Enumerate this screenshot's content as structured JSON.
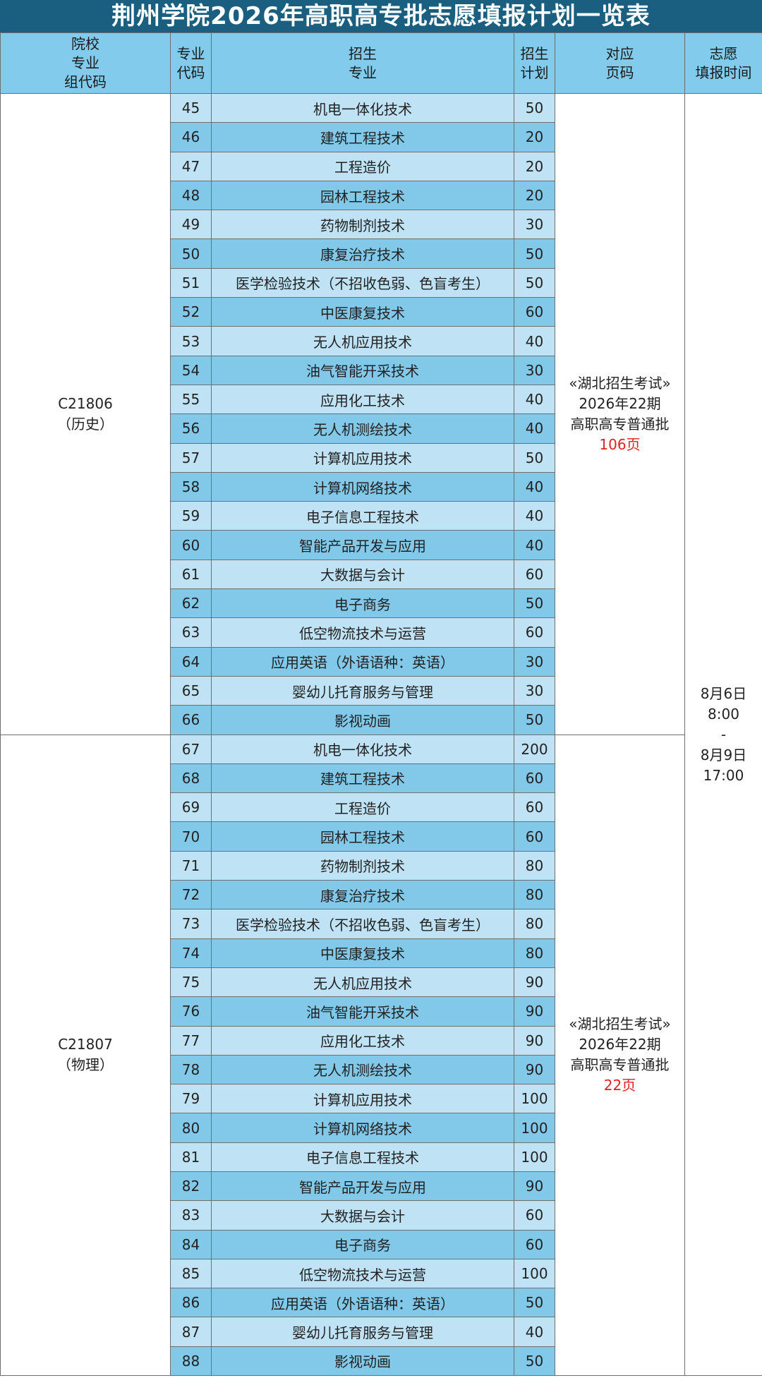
{
  "title": "荆州学院2026年高职高专批志愿填报计划一览表",
  "headers": {
    "group_code": [
      "院校",
      "专业",
      "组代码"
    ],
    "major_code": [
      "专业",
      "代码"
    ],
    "major_name": [
      "招生",
      "专业"
    ],
    "plan": [
      "招生",
      "计划"
    ],
    "page_ref": [
      "对应",
      "页码"
    ],
    "fill_time": [
      "志愿",
      "填报时间"
    ]
  },
  "fill_time": [
    "8月6日",
    "8:00",
    "-",
    "8月9日",
    "17:00"
  ],
  "groups": [
    {
      "code": "C21806",
      "subject": "（历史）",
      "page_ref": [
        "«湖北招生考试»",
        "2026年22期",
        "高职高专普通批"
      ],
      "page_num": "106页",
      "rows": [
        {
          "code": "45",
          "name": "机电一体化技术",
          "plan": "50"
        },
        {
          "code": "46",
          "name": "建筑工程技术",
          "plan": "20"
        },
        {
          "code": "47",
          "name": "工程造价",
          "plan": "20"
        },
        {
          "code": "48",
          "name": "园林工程技术",
          "plan": "20"
        },
        {
          "code": "49",
          "name": "药物制剂技术",
          "plan": "30"
        },
        {
          "code": "50",
          "name": "康复治疗技术",
          "plan": "50"
        },
        {
          "code": "51",
          "name": "医学检验技术（不招收色弱、色盲考生）",
          "plan": "50"
        },
        {
          "code": "52",
          "name": "中医康复技术",
          "plan": "60"
        },
        {
          "code": "53",
          "name": "无人机应用技术",
          "plan": "40"
        },
        {
          "code": "54",
          "name": "油气智能开采技术",
          "plan": "30"
        },
        {
          "code": "55",
          "name": "应用化工技术",
          "plan": "40"
        },
        {
          "code": "56",
          "name": "无人机测绘技术",
          "plan": "40"
        },
        {
          "code": "57",
          "name": "计算机应用技术",
          "plan": "50"
        },
        {
          "code": "58",
          "name": "计算机网络技术",
          "plan": "40"
        },
        {
          "code": "59",
          "name": "电子信息工程技术",
          "plan": "40"
        },
        {
          "code": "60",
          "name": "智能产品开发与应用",
          "plan": "40"
        },
        {
          "code": "61",
          "name": "大数据与会计",
          "plan": "60"
        },
        {
          "code": "62",
          "name": "电子商务",
          "plan": "50"
        },
        {
          "code": "63",
          "name": "低空物流技术与运营",
          "plan": "60"
        },
        {
          "code": "64",
          "name": "应用英语（外语语种：英语）",
          "plan": "30"
        },
        {
          "code": "65",
          "name": "婴幼儿托育服务与管理",
          "plan": "30"
        },
        {
          "code": "66",
          "name": "影视动画",
          "plan": "50"
        }
      ]
    },
    {
      "code": "C21807",
      "subject": "（物理）",
      "page_ref": [
        "«湖北招生考试»",
        "2026年22期",
        "高职高专普通批"
      ],
      "page_num": "22页",
      "rows": [
        {
          "code": "67",
          "name": "机电一体化技术",
          "plan": "200"
        },
        {
          "code": "68",
          "name": "建筑工程技术",
          "plan": "60"
        },
        {
          "code": "69",
          "name": "工程造价",
          "plan": "60"
        },
        {
          "code": "70",
          "name": "园林工程技术",
          "plan": "60"
        },
        {
          "code": "71",
          "name": "药物制剂技术",
          "plan": "80"
        },
        {
          "code": "72",
          "name": "康复治疗技术",
          "plan": "80"
        },
        {
          "code": "73",
          "name": "医学检验技术（不招收色弱、色盲考生）",
          "plan": "80"
        },
        {
          "code": "74",
          "name": "中医康复技术",
          "plan": "80"
        },
        {
          "code": "75",
          "name": "无人机应用技术",
          "plan": "90"
        },
        {
          "code": "76",
          "name": "油气智能开采技术",
          "plan": "90"
        },
        {
          "code": "77",
          "name": "应用化工技术",
          "plan": "90"
        },
        {
          "code": "78",
          "name": "无人机测绘技术",
          "plan": "90"
        },
        {
          "code": "79",
          "name": "计算机应用技术",
          "plan": "100"
        },
        {
          "code": "80",
          "name": "计算机网络技术",
          "plan": "100"
        },
        {
          "code": "81",
          "name": "电子信息工程技术",
          "plan": "100"
        },
        {
          "code": "82",
          "name": "智能产品开发与应用",
          "plan": "90"
        },
        {
          "code": "83",
          "name": "大数据与会计",
          "plan": "60"
        },
        {
          "code": "84",
          "name": "电子商务",
          "plan": "60"
        },
        {
          "code": "85",
          "name": "低空物流技术与运营",
          "plan": "100"
        },
        {
          "code": "86",
          "name": "应用英语（外语语种：英语）",
          "plan": "50"
        },
        {
          "code": "87",
          "name": "婴幼儿托育服务与管理",
          "plan": "40"
        },
        {
          "code": "88",
          "name": "影视动画",
          "plan": "50"
        }
      ]
    }
  ]
}
